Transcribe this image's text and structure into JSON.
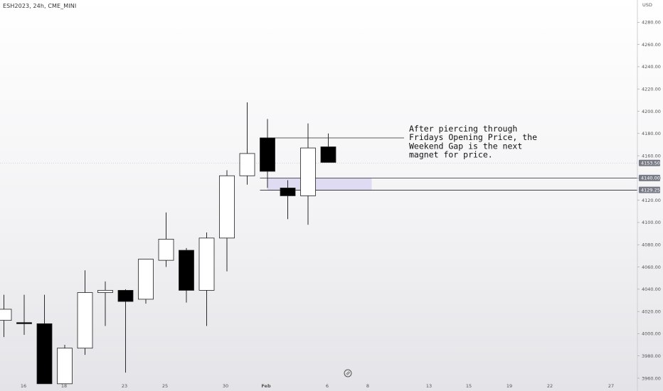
{
  "header": {
    "symbol": "ESH2023, 24h, CME_MINI"
  },
  "chart_data": {
    "type": "candlestick",
    "currency": "USD",
    "ylim": [
      3960,
      4300
    ],
    "y_ticks": [
      "4280.00",
      "4260.00",
      "4240.00",
      "4220.00",
      "4200.00",
      "4180.00",
      "4160.00",
      "4140.00",
      "4120.00",
      "4100.00",
      "4080.00",
      "4060.00",
      "4040.00",
      "4020.00",
      "4000.00",
      "3980.00",
      "3960.00"
    ],
    "x_ticks": [
      "16",
      "18",
      "23",
      "25",
      "30",
      "Feb",
      "6",
      "8",
      "13",
      "15",
      "19",
      "22",
      "27"
    ],
    "candles": [
      {
        "open": 4012,
        "high": 4035,
        "low": 3997,
        "close": 4022
      },
      {
        "open": 4010,
        "high": 4035,
        "low": 3999,
        "close": 4009
      },
      {
        "open": 4009,
        "high": 4035,
        "low": 3955,
        "close": 3955
      },
      {
        "open": 3955,
        "high": 3990,
        "low": 3955,
        "close": 3987
      },
      {
        "open": 3987,
        "high": 4057,
        "low": 3981,
        "close": 4037
      },
      {
        "open": 4037,
        "high": 4047,
        "low": 4007,
        "close": 4039
      },
      {
        "open": 4039,
        "high": 4040,
        "low": 3965,
        "close": 4029
      },
      {
        "open": 4031,
        "high": 4067,
        "low": 4027,
        "close": 4067
      },
      {
        "open": 4066,
        "high": 4109,
        "low": 4060,
        "close": 4085
      },
      {
        "open": 4075,
        "high": 4077,
        "low": 4028,
        "close": 4039
      },
      {
        "open": 4039,
        "high": 4091,
        "low": 4007,
        "close": 4086
      },
      {
        "open": 4086,
        "high": 4147,
        "low": 4056,
        "close": 4142
      },
      {
        "open": 4142,
        "high": 4208,
        "low": 4134,
        "close": 4162
      },
      {
        "open": 4176,
        "high": 4193,
        "low": 4131,
        "close": 4146
      },
      {
        "open": 4131,
        "high": 4138,
        "low": 4103,
        "close": 4124
      },
      {
        "open": 4124,
        "high": 4189,
        "low": 4098,
        "close": 4167
      },
      {
        "open": 4168,
        "high": 4180,
        "low": 4154,
        "close": 4154
      }
    ],
    "candle_labels": [
      "",
      "16",
      "",
      "18",
      "",
      "",
      "23",
      "",
      "25",
      "",
      "30",
      "",
      "Feb",
      "",
      "",
      "6",
      ""
    ],
    "gap_zone": {
      "top": 4140,
      "bottom": 4129
    },
    "hlines": [
      {
        "value": 4176,
        "end": "annotation"
      },
      {
        "value": 4140,
        "end": "right"
      },
      {
        "value": 4129,
        "end": "right"
      }
    ],
    "price_pills": [
      {
        "value": 4153.5,
        "text": "4153.50",
        "color": "#787b86"
      },
      {
        "value": 4140,
        "text": "4140.00",
        "color": "#787b86"
      },
      {
        "value": 4129.25,
        "text": "4129.25",
        "color": "#787b86"
      }
    ],
    "annotation": {
      "lines": [
        "After piercing through",
        "Fridays Opening Price, the",
        "Weekend Gap is the next",
        "magnet for price."
      ]
    },
    "colors": {
      "up_body": "#ffffff",
      "down_body": "#000000",
      "wick": "#2a2a2a",
      "gap": "#d9d6f2",
      "grid_line": "#2a2a2a"
    }
  }
}
